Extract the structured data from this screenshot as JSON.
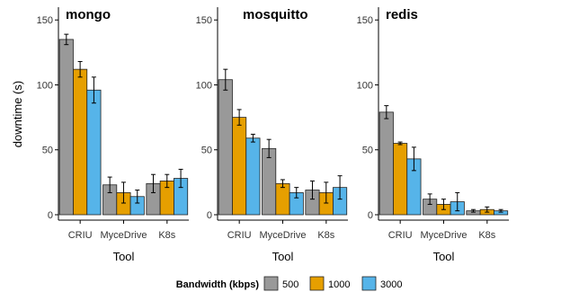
{
  "chart_data": {
    "type": "bar",
    "y_axis_label": "downtime (s)",
    "x_axis_label": "Tool",
    "categories": [
      "CRIU",
      "MyceDrive",
      "K8s"
    ],
    "ylim": [
      0,
      155
    ],
    "yticks": [
      0,
      50,
      100,
      150
    ],
    "legend": {
      "title": "Bandwidth (kbps)",
      "position": "bottom",
      "entries": [
        {
          "name": "500",
          "color": "#999999"
        },
        {
          "name": "1000",
          "color": "#E69F00"
        },
        {
          "name": "3000",
          "color": "#56B4E9"
        }
      ]
    },
    "panels": [
      {
        "title": "mongo",
        "series": [
          {
            "name": "500",
            "values": [
              135,
              23,
              24
            ],
            "errors": [
              4,
              6,
              7
            ]
          },
          {
            "name": "1000",
            "values": [
              112,
              17,
              26
            ],
            "errors": [
              6,
              8,
              5
            ]
          },
          {
            "name": "3000",
            "values": [
              96,
              14,
              28
            ],
            "errors": [
              10,
              5,
              7
            ]
          }
        ]
      },
      {
        "title": "mosquitto",
        "series": [
          {
            "name": "500",
            "values": [
              104,
              51,
              19
            ],
            "errors": [
              8,
              7,
              7
            ]
          },
          {
            "name": "1000",
            "values": [
              75,
              24,
              17
            ],
            "errors": [
              6,
              3,
              8
            ]
          },
          {
            "name": "3000",
            "values": [
              59,
              17,
              21
            ],
            "errors": [
              3,
              4,
              9
            ]
          }
        ]
      },
      {
        "title": "redis",
        "series": [
          {
            "name": "500",
            "values": [
              79,
              12,
              3
            ],
            "errors": [
              5,
              4,
              1
            ]
          },
          {
            "name": "1000",
            "values": [
              55,
              8,
              4
            ],
            "errors": [
              1,
              4,
              2
            ]
          },
          {
            "name": "3000",
            "values": [
              43,
              10,
              3
            ],
            "errors": [
              9,
              7,
              1
            ]
          }
        ]
      }
    ]
  }
}
